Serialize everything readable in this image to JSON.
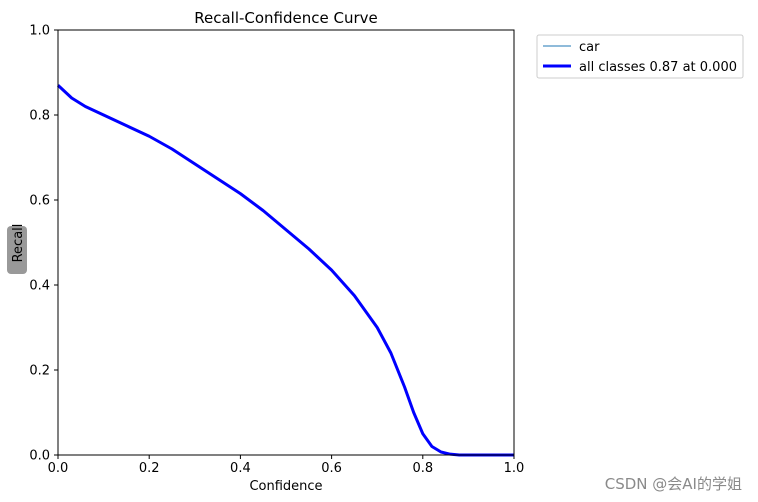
{
  "chart_data": {
    "type": "line",
    "title": "Recall-Confidence Curve",
    "xlabel": "Confidence",
    "ylabel": "Recall",
    "xlim": [
      0,
      1
    ],
    "ylim": [
      0,
      1
    ],
    "x_ticks": [
      "0.0",
      "0.2",
      "0.4",
      "0.6",
      "0.8",
      "1.0"
    ],
    "y_ticks": [
      "0.0",
      "0.2",
      "0.4",
      "0.6",
      "0.8",
      "1.0"
    ],
    "grid": false,
    "legend_position": "outside-top-right",
    "series": [
      {
        "name": "car",
        "color": "#1f77b4",
        "x": [
          0.0,
          0.03,
          0.06,
          0.1,
          0.15,
          0.2,
          0.25,
          0.3,
          0.35,
          0.4,
          0.45,
          0.5,
          0.55,
          0.6,
          0.65,
          0.7,
          0.73,
          0.76,
          0.78,
          0.8,
          0.82,
          0.84,
          0.86,
          0.88,
          0.9,
          0.95,
          1.0
        ],
        "y": [
          0.87,
          0.84,
          0.82,
          0.8,
          0.775,
          0.75,
          0.72,
          0.685,
          0.65,
          0.615,
          0.575,
          0.53,
          0.485,
          0.435,
          0.375,
          0.3,
          0.24,
          0.16,
          0.1,
          0.05,
          0.02,
          0.007,
          0.002,
          0.0,
          0.0,
          0.0,
          0.0
        ]
      },
      {
        "name": "all classes 0.87 at 0.000",
        "color": "#0000ff",
        "x": [
          0.0,
          0.03,
          0.06,
          0.1,
          0.15,
          0.2,
          0.25,
          0.3,
          0.35,
          0.4,
          0.45,
          0.5,
          0.55,
          0.6,
          0.65,
          0.7,
          0.73,
          0.76,
          0.78,
          0.8,
          0.82,
          0.84,
          0.86,
          0.88,
          0.9,
          0.95,
          1.0
        ],
        "y": [
          0.87,
          0.84,
          0.82,
          0.8,
          0.775,
          0.75,
          0.72,
          0.685,
          0.65,
          0.615,
          0.575,
          0.53,
          0.485,
          0.435,
          0.375,
          0.3,
          0.24,
          0.16,
          0.1,
          0.05,
          0.02,
          0.007,
          0.002,
          0.0,
          0.0,
          0.0,
          0.0
        ]
      }
    ]
  },
  "watermark": "CSDN @会AI的学姐"
}
